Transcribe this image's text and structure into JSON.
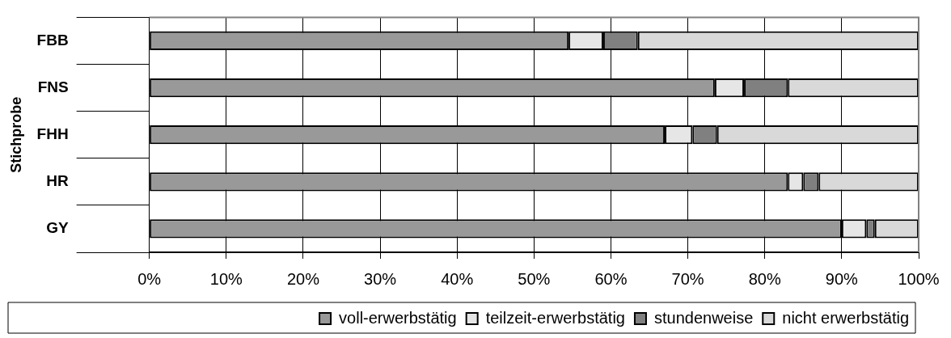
{
  "chart_data": {
    "type": "bar",
    "orientation": "horizontal",
    "stacked": true,
    "ylabel": "Stichprobe",
    "categories": [
      "FBB",
      "FNS",
      "FHH",
      "HR",
      "GY"
    ],
    "series": [
      {
        "name": "voll-erwerbstätig",
        "color": "#999999",
        "values": [
          54.5,
          73.5,
          67.0,
          83.0,
          90.0
        ]
      },
      {
        "name": "teilzeit-erwerbstätig",
        "color": "#e6e6e6",
        "values": [
          4.5,
          3.8,
          3.6,
          2.0,
          3.2
        ]
      },
      {
        "name": "stundenweise",
        "color": "#808080",
        "values": [
          4.5,
          5.7,
          3.2,
          2.0,
          1.1
        ]
      },
      {
        "name": "nicht erwerbstätig",
        "color": "#d9d9d9",
        "values": [
          36.5,
          17.0,
          26.2,
          13.0,
          5.7
        ]
      }
    ],
    "xlim": [
      0,
      100
    ],
    "xticks": [
      {
        "value": 0,
        "label": "0%"
      },
      {
        "value": 10,
        "label": "10%"
      },
      {
        "value": 20,
        "label": "20%"
      },
      {
        "value": 30,
        "label": "30%"
      },
      {
        "value": 40,
        "label": "40%"
      },
      {
        "value": 50,
        "label": "50%"
      },
      {
        "value": 60,
        "label": "60%"
      },
      {
        "value": 70,
        "label": "70%"
      },
      {
        "value": 80,
        "label": "80%"
      },
      {
        "value": 90,
        "label": "90%"
      },
      {
        "value": 100,
        "label": "100%"
      }
    ],
    "grid": "x",
    "legend": "bottom"
  }
}
